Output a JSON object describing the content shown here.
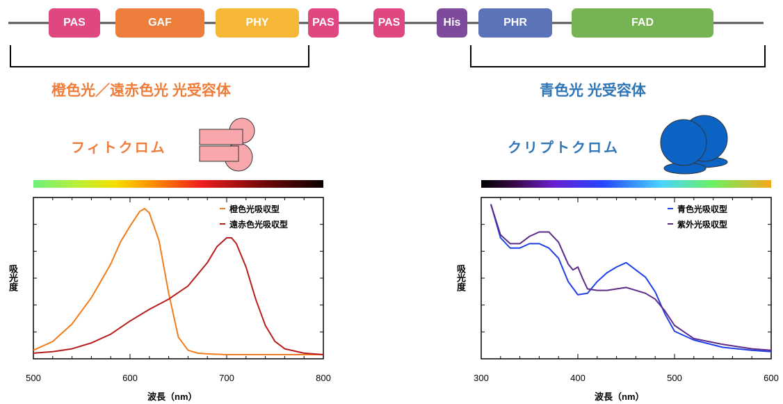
{
  "domain_bar": {
    "domains": [
      {
        "label": "PAS",
        "color": "#e0467f"
      },
      {
        "label": "GAF",
        "color": "#ed7d3a"
      },
      {
        "label": "PHY",
        "color": "#f7b737"
      },
      {
        "label": "PAS",
        "color": "#e0467f"
      },
      {
        "label": "PAS",
        "color": "#e0467f"
      },
      {
        "label": "His",
        "color": "#7d4a9c"
      },
      {
        "label": "PHR",
        "color": "#5b73b8"
      },
      {
        "label": "FAD",
        "color": "#76b353"
      }
    ]
  },
  "left": {
    "group_label": "橙色光／遠赤色光 光受容体",
    "protein_name": "フィトクロム",
    "label_color": "#ed7d3a"
  },
  "right": {
    "group_label": "青色光 光受容体",
    "protein_name": "クリプトクロム",
    "label_color": "#2e75b6"
  },
  "chart_data": [
    {
      "type": "line",
      "xlabel": "波長（nm）",
      "ylabel": "吸光度",
      "xlim": [
        500,
        800
      ],
      "xticks": [
        500,
        600,
        700,
        800
      ],
      "legend_position": "top-right",
      "series": [
        {
          "name": "橙色光吸収型",
          "color": "#f07c1b",
          "x": [
            500,
            520,
            540,
            560,
            580,
            590,
            600,
            610,
            615,
            620,
            630,
            640,
            650,
            660,
            670,
            680,
            700,
            720,
            750,
            800
          ],
          "y": [
            0.03,
            0.09,
            0.21,
            0.39,
            0.62,
            0.77,
            0.88,
            0.98,
            1.0,
            0.97,
            0.78,
            0.42,
            0.12,
            0.03,
            0.01,
            0.005,
            0.0,
            0.0,
            0.0,
            0.0
          ]
        },
        {
          "name": "遠赤色光吸収型",
          "color": "#b71c1c",
          "x": [
            500,
            520,
            540,
            560,
            580,
            600,
            620,
            640,
            660,
            680,
            690,
            700,
            705,
            710,
            720,
            730,
            740,
            750,
            760,
            780,
            800
          ],
          "y": [
            0.01,
            0.02,
            0.04,
            0.08,
            0.14,
            0.23,
            0.31,
            0.38,
            0.47,
            0.63,
            0.74,
            0.8,
            0.8,
            0.76,
            0.6,
            0.38,
            0.2,
            0.09,
            0.04,
            0.01,
            0.0
          ]
        }
      ]
    },
    {
      "type": "line",
      "xlabel": "波長（nm）",
      "ylabel": "吸光度",
      "xlim": [
        300,
        600
      ],
      "xticks": [
        300,
        400,
        500,
        600
      ],
      "legend_position": "top-right",
      "series": [
        {
          "name": "青色光吸収型",
          "color": "#1f3fe8",
          "x": [
            310,
            320,
            330,
            340,
            350,
            360,
            370,
            380,
            390,
            400,
            410,
            420,
            430,
            440,
            450,
            460,
            470,
            480,
            490,
            500,
            520,
            550,
            580,
            600
          ],
          "y": [
            1.03,
            0.8,
            0.73,
            0.73,
            0.76,
            0.76,
            0.73,
            0.66,
            0.5,
            0.41,
            0.42,
            0.5,
            0.56,
            0.6,
            0.63,
            0.58,
            0.53,
            0.43,
            0.28,
            0.16,
            0.1,
            0.05,
            0.03,
            0.02
          ]
        },
        {
          "name": "紫外光吸収型",
          "color": "#5b2a86",
          "x": [
            310,
            320,
            330,
            340,
            350,
            360,
            370,
            380,
            390,
            395,
            400,
            405,
            410,
            420,
            430,
            440,
            450,
            460,
            470,
            480,
            490,
            500,
            520,
            550,
            580,
            600
          ],
          "y": [
            1.03,
            0.82,
            0.76,
            0.76,
            0.81,
            0.84,
            0.84,
            0.77,
            0.62,
            0.58,
            0.6,
            0.52,
            0.45,
            0.44,
            0.44,
            0.45,
            0.46,
            0.44,
            0.42,
            0.38,
            0.3,
            0.2,
            0.11,
            0.07,
            0.04,
            0.03
          ]
        }
      ]
    }
  ]
}
